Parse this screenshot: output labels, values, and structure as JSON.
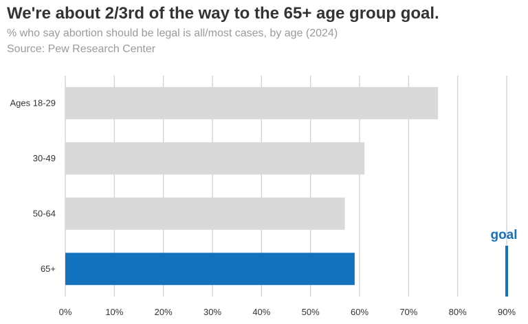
{
  "chart_data": {
    "type": "bar",
    "orientation": "horizontal",
    "title": "We're about 2/3rd of the way to the 65+ age group goal.",
    "subtitle": "% who say abortion should be legal is all/most cases, by age (2024)",
    "source": "Source: Pew Research Center",
    "categories": [
      "Ages 18-29",
      "30-49",
      "50-64",
      "65+"
    ],
    "values": [
      76,
      61,
      57,
      59
    ],
    "highlight_category": "65+",
    "xlim": [
      0,
      90
    ],
    "xticks": [
      0,
      10,
      20,
      30,
      40,
      50,
      60,
      70,
      80,
      90
    ],
    "xtick_suffix": "%",
    "grid": "vertical",
    "goal": {
      "label": "goal",
      "value": 90
    },
    "colors": {
      "bar": "#d9d9d9",
      "highlight": "#1272be",
      "grid": "#d6d6d6"
    }
  }
}
